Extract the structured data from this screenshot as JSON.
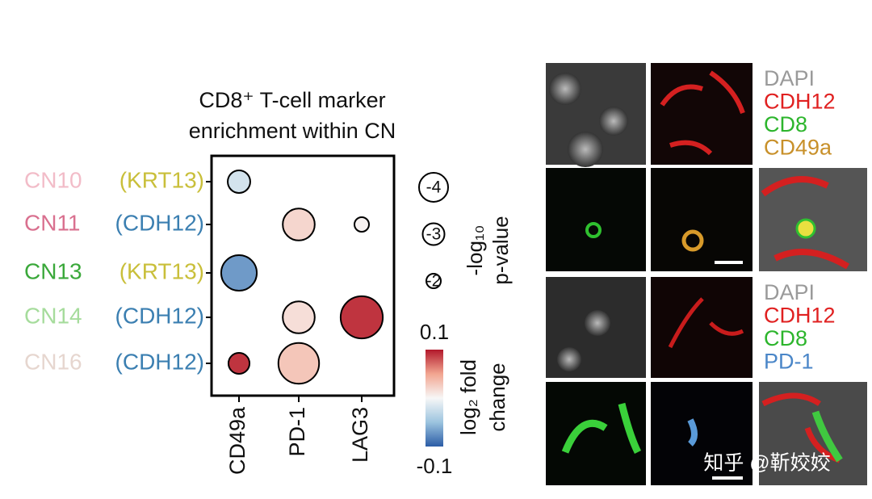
{
  "chart_data": {
    "type": "dotplot",
    "title_lines": [
      "CD8⁺ T-cell marker",
      "enrichment within CN"
    ],
    "rows": [
      {
        "name": "CN10",
        "name_color": "#f2bcc8",
        "group": "(KRT13)",
        "group_color": "#c9bf3a"
      },
      {
        "name": "CN11",
        "name_color": "#d9708f",
        "group": "(CDH12)",
        "group_color": "#3b7fb1"
      },
      {
        "name": "CN13",
        "name_color": "#3aa83a",
        "group": "(KRT13)",
        "group_color": "#c9bf3a"
      },
      {
        "name": "CN14",
        "name_color": "#a6dc9c",
        "group": "(CDH12)",
        "group_color": "#3b7fb1"
      },
      {
        "name": "CN16",
        "name_color": "#e6d6cf",
        "group": "(CDH12)",
        "group_color": "#3b7fb1"
      }
    ],
    "columns": [
      "CD49a",
      "PD-1",
      "LAG3"
    ],
    "size": [
      [
        -3.1,
        null,
        null
      ],
      [
        null,
        -4.4,
        -2
      ],
      [
        -4.9,
        null,
        null
      ],
      [
        null,
        -4.4,
        -5.8
      ],
      [
        -2.9,
        -5.6,
        null
      ]
    ],
    "color_values": [
      [
        -0.02,
        null,
        null
      ],
      [
        null,
        0.02,
        0.003
      ],
      [
        -0.07,
        null,
        null
      ],
      [
        null,
        0.015,
        0.09
      ],
      [
        0.09,
        0.03,
        null
      ]
    ],
    "size_label_lines": [
      "-log₁₀",
      "p-value"
    ],
    "size_legend": [
      -4,
      -3,
      -2
    ],
    "color_label_lines": [
      "log₂ fold",
      "change"
    ],
    "clim": [
      -0.1,
      0.1
    ],
    "cticks": [
      0.1,
      -0.1
    ],
    "colormap": [
      "#2b5ca6",
      "#9cc4df",
      "#f7f7f7",
      "#f2a590",
      "#b2182b"
    ]
  },
  "figure_labels": [
    [
      {
        "text": "DAPI",
        "color": "#9a9a9a"
      },
      {
        "text": "CDH12",
        "color": "#e02020"
      },
      {
        "text": "CD8",
        "color": "#2cb52c"
      },
      {
        "text": "CD49a",
        "color": "#c8902a"
      }
    ],
    [
      {
        "text": "DAPI",
        "color": "#9a9a9a"
      },
      {
        "text": "CDH12",
        "color": "#e02020"
      },
      {
        "text": "CD8",
        "color": "#2cb52c"
      },
      {
        "text": "PD-1",
        "color": "#4a86c8"
      }
    ]
  ],
  "watermark": "知乎 @靳姣姣"
}
